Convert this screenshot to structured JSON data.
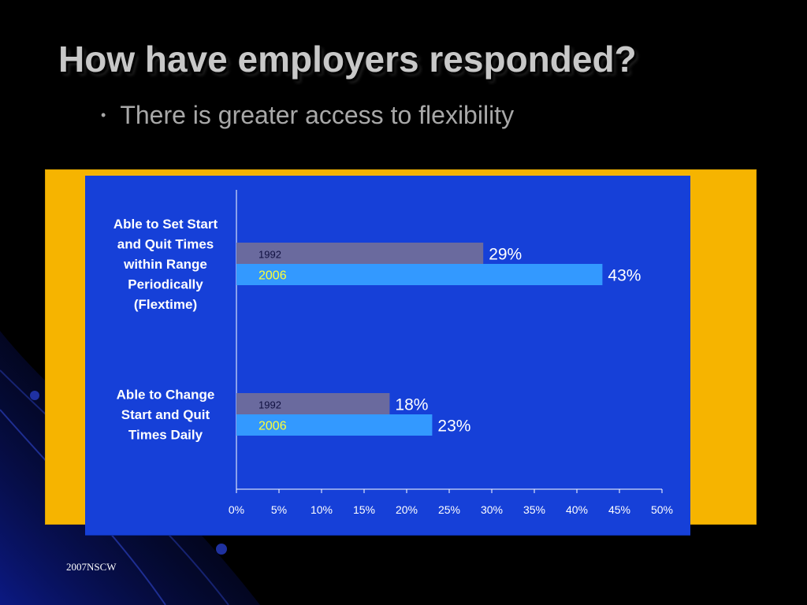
{
  "slide": {
    "title": "How have employers responded?",
    "bullets": [
      "There is greater access to flexibility"
    ],
    "footer": "2007NSCW"
  },
  "colors": {
    "background": "#000000",
    "frame": "#f6b400",
    "panel": "#1640d8",
    "bar_1992": "#6a6a9e",
    "bar_2006": "#3399ff",
    "label_2006": "#ffff33"
  },
  "chart_data": {
    "type": "bar",
    "orientation": "horizontal",
    "categories": [
      "Able to Set Start and Quit Times within Range Periodically (Flextime)",
      "Able to Change Start and Quit Times Daily"
    ],
    "series": [
      {
        "name": "1992",
        "values": [
          29,
          18
        ],
        "labels": [
          "29%",
          "18%"
        ]
      },
      {
        "name": "2006",
        "values": [
          43,
          23
        ],
        "labels": [
          "43%",
          "23%"
        ]
      }
    ],
    "xlim": [
      0,
      50
    ],
    "xticks": [
      "0%",
      "5%",
      "10%",
      "15%",
      "20%",
      "25%",
      "30%",
      "35%",
      "40%",
      "45%",
      "50%"
    ],
    "grid": false,
    "legend": "none"
  }
}
